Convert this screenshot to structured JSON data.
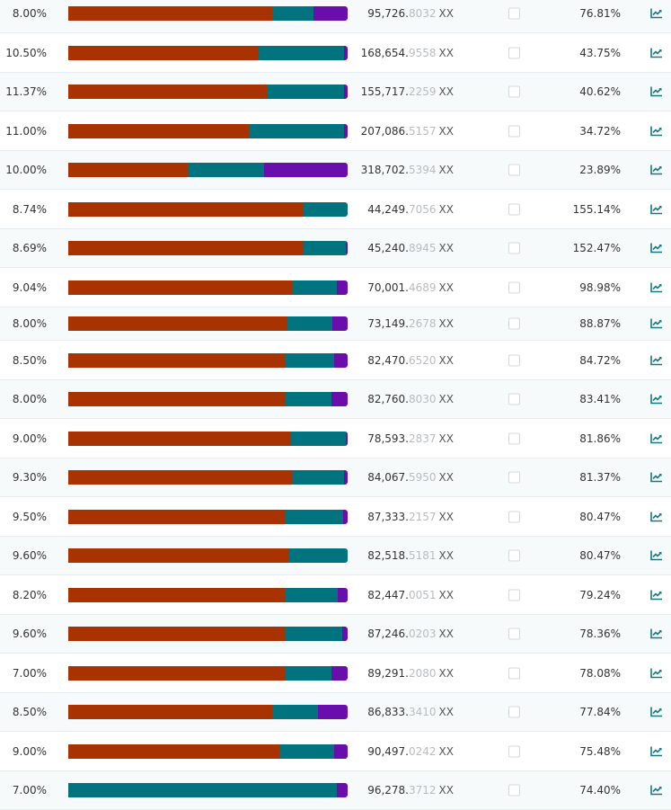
{
  "colors": {
    "brown": "#a83200",
    "teal": "#00737f",
    "purple": "#6a0dad",
    "icon": "#137a80"
  },
  "unit": "XX",
  "rows": [
    {
      "rate": "8.00%",
      "int": "95,726.",
      "dec": "8032",
      "pct": "76.81%",
      "bar": [
        73.0,
        14.8,
        12.2
      ]
    },
    {
      "rate": "10.50%",
      "int": "168,654.",
      "dec": "9558",
      "pct": "43.75%",
      "bar": [
        68.2,
        30.5,
        1.3
      ]
    },
    {
      "rate": "11.37%",
      "int": "155,717.",
      "dec": "2259",
      "pct": "40.62%",
      "bar": [
        71.1,
        27.7,
        1.2
      ]
    },
    {
      "rate": "11.00%",
      "int": "207,086.",
      "dec": "5157",
      "pct": "34.72%",
      "bar": [
        64.6,
        34.1,
        1.3
      ]
    },
    {
      "rate": "10.00%",
      "int": "318,702.",
      "dec": "5394",
      "pct": "23.89%",
      "bar": [
        42.8,
        27.3,
        29.9
      ]
    },
    {
      "rate": "8.74%",
      "int": "44,249.",
      "dec": "7056",
      "pct": "155.14%",
      "bar": [
        84.2,
        15.8,
        0
      ]
    },
    {
      "rate": "8.69%",
      "int": "45,240.",
      "dec": "8945",
      "pct": "152.47%",
      "bar": [
        84.2,
        15.1,
        0.7
      ]
    },
    {
      "rate": "9.04%",
      "int": "70,001.",
      "dec": "4689",
      "pct": "98.98%",
      "bar": [
        80.4,
        15.8,
        3.8
      ]
    },
    {
      "rate": "8.00%",
      "int": "73,149.",
      "dec": "2678",
      "pct": "88.87%",
      "bar": [
        78.5,
        16.1,
        5.4
      ]
    },
    {
      "rate": "8.50%",
      "int": "82,470.",
      "dec": "6520",
      "pct": "84.72%",
      "bar": [
        77.8,
        17.4,
        4.8
      ]
    },
    {
      "rate": "8.00%",
      "int": "82,760.",
      "dec": "8030",
      "pct": "83.41%",
      "bar": [
        77.8,
        16.4,
        5.8
      ]
    },
    {
      "rate": "9.00%",
      "int": "78,593.",
      "dec": "2837",
      "pct": "81.86%",
      "bar": [
        79.7,
        19.6,
        0.7
      ]
    },
    {
      "rate": "9.30%",
      "int": "84,067.",
      "dec": "5950",
      "pct": "81.37%",
      "bar": [
        80.4,
        18.3,
        1.3
      ]
    },
    {
      "rate": "9.50%",
      "int": "87,333.",
      "dec": "2157",
      "pct": "80.47%",
      "bar": [
        77.8,
        20.6,
        1.6
      ]
    },
    {
      "rate": "9.60%",
      "int": "82,518.",
      "dec": "5181",
      "pct": "80.47%",
      "bar": [
        79.1,
        20.9,
        0
      ]
    },
    {
      "rate": "8.20%",
      "int": "82,447.",
      "dec": "0051",
      "pct": "79.24%",
      "bar": [
        77.8,
        18.6,
        3.6
      ]
    },
    {
      "rate": "9.60%",
      "int": "87,246.",
      "dec": "0203",
      "pct": "78.36%",
      "bar": [
        77.8,
        20.3,
        1.9
      ]
    },
    {
      "rate": "7.00%",
      "int": "89,291.",
      "dec": "2080",
      "pct": "78.08%",
      "bar": [
        77.8,
        16.4,
        5.8
      ]
    },
    {
      "rate": "8.50%",
      "int": "86,833.",
      "dec": "3410",
      "pct": "77.84%",
      "bar": [
        73.0,
        16.4,
        10.6
      ]
    },
    {
      "rate": "9.00%",
      "int": "90,497.",
      "dec": "0242",
      "pct": "75.48%",
      "bar": [
        75.6,
        19.6,
        4.8
      ]
    },
    {
      "rate": "7.00%",
      "int": "96,278.",
      "dec": "3712",
      "pct": "74.40%",
      "bar": [
        0,
        96.1,
        3.9
      ]
    }
  ]
}
